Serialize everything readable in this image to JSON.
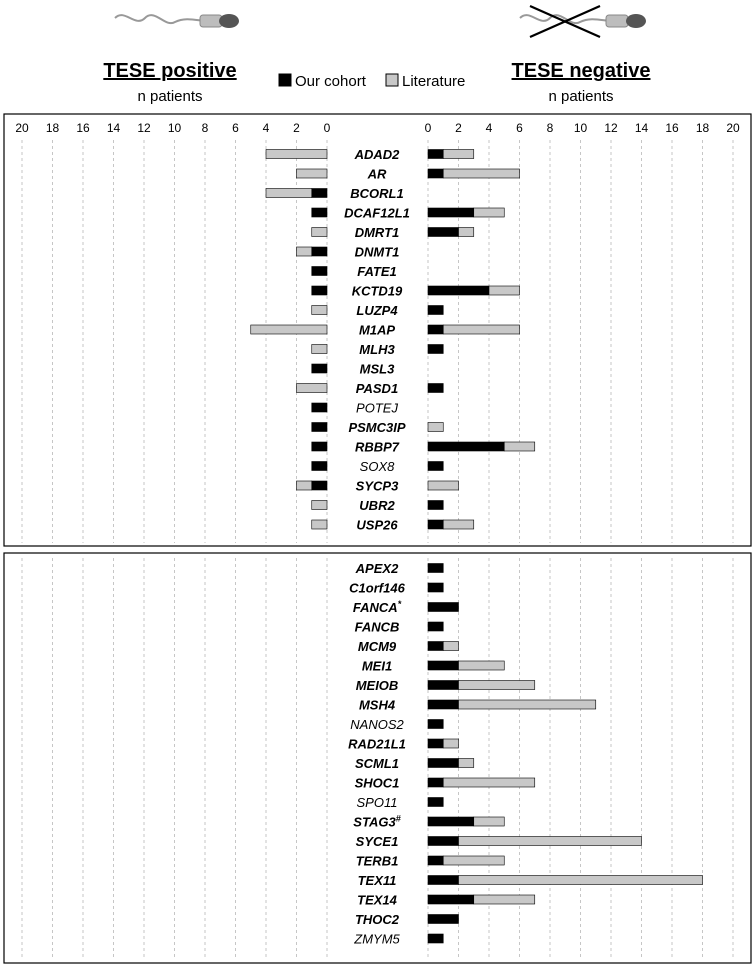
{
  "header": {
    "left_title": "TESE positive",
    "left_sub": "n patients",
    "right_title": "TESE negative",
    "right_sub": "n patients"
  },
  "chart_data": {
    "type": "bar",
    "orientation": "horizontal-butterfly",
    "legend": {
      "placement": "top-center",
      "entries": [
        {
          "name": "Our cohort",
          "color": "#000000"
        },
        {
          "name": "Literature",
          "color": "#c8c8c8"
        }
      ]
    },
    "axis_ticks": [
      "20",
      "18",
      "16",
      "14",
      "12",
      "10",
      "8",
      "6",
      "4",
      "2",
      "0",
      "0",
      "2",
      "4",
      "6",
      "8",
      "10",
      "12",
      "14",
      "16",
      "18",
      "20"
    ],
    "xlim": [
      0,
      20
    ],
    "grid": "vertical dashed",
    "panels": [
      {
        "genes": [
          {
            "name": "ADAD2",
            "bold": true,
            "pos_cohort": 0,
            "pos_lit": 4,
            "neg_cohort": 1,
            "neg_lit": 2
          },
          {
            "name": "AR",
            "bold": true,
            "pos_cohort": 0,
            "pos_lit": 2,
            "neg_cohort": 1,
            "neg_lit": 5
          },
          {
            "name": "BCORL1",
            "bold": true,
            "pos_cohort": 1,
            "pos_lit": 3,
            "neg_cohort": 0,
            "neg_lit": 0
          },
          {
            "name": "DCAF12L1",
            "bold": true,
            "pos_cohort": 1,
            "pos_lit": 0,
            "neg_cohort": 3,
            "neg_lit": 2
          },
          {
            "name": "DMRT1",
            "bold": true,
            "pos_cohort": 0,
            "pos_lit": 1,
            "neg_cohort": 2,
            "neg_lit": 1
          },
          {
            "name": "DNMT1",
            "bold": true,
            "pos_cohort": 1,
            "pos_lit": 1,
            "neg_cohort": 0,
            "neg_lit": 0
          },
          {
            "name": "FATE1",
            "bold": true,
            "pos_cohort": 1,
            "pos_lit": 0,
            "neg_cohort": 0,
            "neg_lit": 0
          },
          {
            "name": "KCTD19",
            "bold": true,
            "pos_cohort": 1,
            "pos_lit": 0,
            "neg_cohort": 4,
            "neg_lit": 2
          },
          {
            "name": "LUZP4",
            "bold": true,
            "pos_cohort": 0,
            "pos_lit": 1,
            "neg_cohort": 1,
            "neg_lit": 0
          },
          {
            "name": "M1AP",
            "bold": true,
            "pos_cohort": 0,
            "pos_lit": 5,
            "neg_cohort": 1,
            "neg_lit": 5
          },
          {
            "name": "MLH3",
            "bold": true,
            "pos_cohort": 0,
            "pos_lit": 1,
            "neg_cohort": 1,
            "neg_lit": 0
          },
          {
            "name": "MSL3",
            "bold": true,
            "pos_cohort": 1,
            "pos_lit": 0,
            "neg_cohort": 0,
            "neg_lit": 0
          },
          {
            "name": "PASD1",
            "bold": true,
            "pos_cohort": 0,
            "pos_lit": 2,
            "neg_cohort": 1,
            "neg_lit": 0
          },
          {
            "name": "POTEJ",
            "bold": false,
            "pos_cohort": 1,
            "pos_lit": 0,
            "neg_cohort": 0,
            "neg_lit": 0
          },
          {
            "name": "PSMC3IP",
            "bold": true,
            "pos_cohort": 1,
            "pos_lit": 0,
            "neg_cohort": 0,
            "neg_lit": 1
          },
          {
            "name": "RBBP7",
            "bold": true,
            "pos_cohort": 1,
            "pos_lit": 0,
            "neg_cohort": 5,
            "neg_lit": 2
          },
          {
            "name": "SOX8",
            "bold": false,
            "pos_cohort": 1,
            "pos_lit": 0,
            "neg_cohort": 1,
            "neg_lit": 0
          },
          {
            "name": "SYCP3",
            "bold": true,
            "pos_cohort": 1,
            "pos_lit": 1,
            "neg_cohort": 0,
            "neg_lit": 2
          },
          {
            "name": "UBR2",
            "bold": true,
            "pos_cohort": 0,
            "pos_lit": 1,
            "neg_cohort": 1,
            "neg_lit": 0
          },
          {
            "name": "USP26",
            "bold": true,
            "pos_cohort": 0,
            "pos_lit": 1,
            "neg_cohort": 1,
            "neg_lit": 2
          }
        ]
      },
      {
        "genes": [
          {
            "name": "APEX2",
            "bold": true,
            "sup": "",
            "neg_cohort": 1,
            "neg_lit": 0
          },
          {
            "name": "C1orf146",
            "bold": true,
            "sup": "",
            "neg_cohort": 1,
            "neg_lit": 0
          },
          {
            "name": "FANCA",
            "bold": true,
            "sup": "*",
            "neg_cohort": 2,
            "neg_lit": 0
          },
          {
            "name": "FANCB",
            "bold": true,
            "sup": "",
            "neg_cohort": 1,
            "neg_lit": 0
          },
          {
            "name": "MCM9",
            "bold": true,
            "sup": "",
            "neg_cohort": 1,
            "neg_lit": 1
          },
          {
            "name": "MEI1",
            "bold": true,
            "sup": "",
            "neg_cohort": 2,
            "neg_lit": 3
          },
          {
            "name": "MEIOB",
            "bold": true,
            "sup": "",
            "neg_cohort": 2,
            "neg_lit": 5
          },
          {
            "name": "MSH4",
            "bold": true,
            "sup": "",
            "neg_cohort": 2,
            "neg_lit": 9
          },
          {
            "name": "NANOS2",
            "bold": false,
            "sup": "",
            "neg_cohort": 1,
            "neg_lit": 0
          },
          {
            "name": "RAD21L1",
            "bold": true,
            "sup": "",
            "neg_cohort": 1,
            "neg_lit": 1
          },
          {
            "name": "SCML1",
            "bold": true,
            "sup": "",
            "neg_cohort": 2,
            "neg_lit": 1
          },
          {
            "name": "SHOC1",
            "bold": true,
            "sup": "",
            "neg_cohort": 1,
            "neg_lit": 6
          },
          {
            "name": "SPO11",
            "bold": false,
            "sup": "",
            "neg_cohort": 1,
            "neg_lit": 0
          },
          {
            "name": "STAG3",
            "bold": true,
            "sup": "#",
            "neg_cohort": 3,
            "neg_lit": 2
          },
          {
            "name": "SYCE1",
            "bold": true,
            "sup": "",
            "neg_cohort": 2,
            "neg_lit": 12
          },
          {
            "name": "TERB1",
            "bold": true,
            "sup": "",
            "neg_cohort": 1,
            "neg_lit": 4
          },
          {
            "name": "TEX11",
            "bold": true,
            "sup": "",
            "neg_cohort": 2,
            "neg_lit": 16
          },
          {
            "name": "TEX14",
            "bold": true,
            "sup": "",
            "neg_cohort": 3,
            "neg_lit": 4
          },
          {
            "name": "THOC2",
            "bold": true,
            "sup": "",
            "neg_cohort": 2,
            "neg_lit": 0
          },
          {
            "name": "ZMYM5",
            "bold": false,
            "sup": "",
            "neg_cohort": 1,
            "neg_lit": 0
          }
        ]
      }
    ]
  }
}
